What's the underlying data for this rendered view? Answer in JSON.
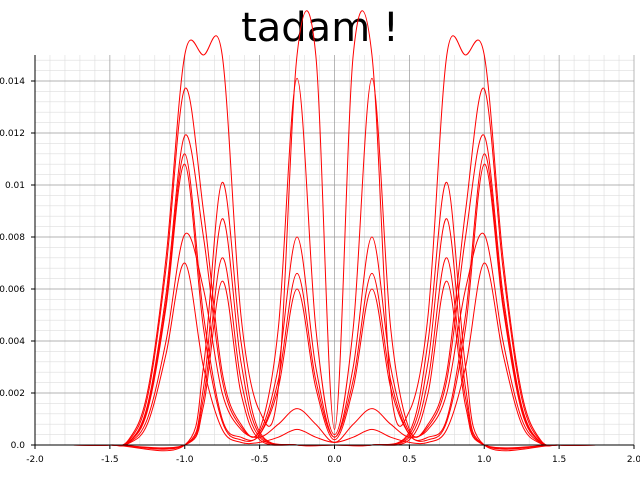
{
  "chart_data": {
    "type": "line",
    "title": "tadam !",
    "xlabel": "",
    "ylabel": "",
    "xlim": [
      -2.0,
      2.0
    ],
    "ylim": [
      0.0,
      0.015
    ],
    "x_ticks": [
      -2.0,
      -1.5,
      -1.0,
      -0.5,
      0.0,
      0.5,
      1.0,
      1.5,
      2.0
    ],
    "x_tick_labels": [
      "-2.0",
      "-1.5",
      "-1.0",
      "-0.5",
      "0.0",
      "0.5",
      "1.0",
      "1.5",
      "2.0"
    ],
    "y_ticks": [
      0.0,
      0.002,
      0.004,
      0.006,
      0.008,
      0.01,
      0.012,
      0.014
    ],
    "y_tick_labels": [
      "0.0",
      "0.002",
      "0.004",
      "0.006",
      "0.008",
      "0.01",
      "0.012",
      "0.014"
    ],
    "grid": true,
    "minor_grid": true,
    "line_color": "#ff0000",
    "series": [
      {
        "x": [
          -2.0,
          -1.75,
          -1.5,
          -1.375,
          -1.25,
          -1.125,
          -1.0,
          -0.875,
          -0.75,
          -0.625,
          -0.5,
          -0.375,
          -0.25,
          -0.125,
          0.0,
          0.125,
          0.25,
          0.375,
          0.5,
          0.625,
          0.75,
          0.875,
          1.0,
          1.125,
          1.25,
          1.375,
          1.5,
          1.75,
          2.0
        ],
        "y": [
          0,
          0,
          0,
          0.0002,
          0.002,
          0.0072,
          0.015,
          0.015,
          0.015,
          0.005,
          0.0013,
          0.0022,
          0.015,
          0.015,
          0.0006,
          0.015,
          0.015,
          0.0022,
          0.0013,
          0.005,
          0.015,
          0.015,
          0.015,
          0.0072,
          0.002,
          0.0002,
          0,
          0,
          0
        ]
      },
      {
        "x": [
          -2.0,
          -1.75,
          -1.5,
          -1.375,
          -1.25,
          -1.125,
          -1.0,
          -0.875,
          -0.75,
          -0.625,
          -0.5,
          -0.375,
          -0.25,
          -0.125,
          0.0,
          0.125,
          0.25,
          0.375,
          0.5,
          0.625,
          0.75,
          0.875,
          1.0,
          1.125,
          1.25,
          1.375,
          1.5,
          1.75,
          2.0
        ],
        "y": [
          0,
          0,
          0,
          0.00015,
          0.0018,
          0.0068,
          0.0137,
          0.009,
          0.0028,
          0.0008,
          0.0006,
          0.0045,
          0.0141,
          0.0045,
          0.0004,
          0.0045,
          0.0141,
          0.0045,
          0.0006,
          0.0008,
          0.0028,
          0.009,
          0.0137,
          0.0068,
          0.0018,
          0.00015,
          0,
          0,
          0
        ]
      },
      {
        "x": [
          -2.0,
          -1.75,
          -1.5,
          -1.375,
          -1.25,
          -1.125,
          -1.0,
          -0.875,
          -0.75,
          -0.625,
          -0.5,
          -0.375,
          -0.25,
          -0.125,
          0.0,
          0.125,
          0.25,
          0.375,
          0.5,
          0.625,
          0.75,
          0.875,
          1.0,
          1.125,
          1.25,
          1.375,
          1.5,
          1.75,
          2.0
        ],
        "y": [
          0,
          0,
          0,
          0.0001,
          0.0015,
          0.0058,
          0.0119,
          0.008,
          0.0025,
          0.0007,
          0.0005,
          0.003,
          0.008,
          0.003,
          0.0003,
          0.003,
          0.008,
          0.003,
          0.0005,
          0.0007,
          0.0025,
          0.008,
          0.0119,
          0.0058,
          0.0015,
          0.0001,
          0,
          0,
          0
        ]
      },
      {
        "x": [
          -2.0,
          -1.75,
          -1.5,
          -1.375,
          -1.25,
          -1.125,
          -1.0,
          -0.875,
          -0.75,
          -0.625,
          -0.5,
          -0.375,
          -0.25,
          -0.125,
          0.0,
          0.125,
          0.25,
          0.375,
          0.5,
          0.625,
          0.75,
          0.875,
          1.0,
          1.125,
          1.25,
          1.375,
          1.5,
          1.75,
          2.0
        ],
        "y": [
          0,
          0,
          0,
          0.0001,
          0.0014,
          0.0055,
          0.0112,
          0.005,
          0.001,
          0.0003,
          0.0004,
          0.0025,
          0.0066,
          0.0025,
          0.0003,
          0.0025,
          0.0066,
          0.0025,
          0.0004,
          0.0003,
          0.001,
          0.005,
          0.0112,
          0.0055,
          0.0014,
          0.0001,
          0,
          0,
          0
        ]
      },
      {
        "x": [
          -2.0,
          -1.75,
          -1.5,
          -1.375,
          -1.25,
          -1.125,
          -1.0,
          -0.875,
          -0.75,
          -0.625,
          -0.5,
          -0.375,
          -0.25,
          -0.125,
          0.0,
          0.125,
          0.25,
          0.375,
          0.5,
          0.625,
          0.75,
          0.875,
          1.0,
          1.125,
          1.25,
          1.375,
          1.5,
          1.75,
          2.0
        ],
        "y": [
          0,
          0,
          0,
          0.0001,
          0.0013,
          0.0053,
          0.0108,
          0.0045,
          0.0009,
          0.0002,
          0.0004,
          0.0022,
          0.006,
          0.0022,
          0.0002,
          0.0022,
          0.006,
          0.0022,
          0.0004,
          0.0002,
          0.0009,
          0.0045,
          0.0108,
          0.0053,
          0.0013,
          0.0001,
          0,
          0,
          0
        ]
      },
      {
        "x": [
          -2.0,
          -1.75,
          -1.5,
          -1.375,
          -1.25,
          -1.125,
          -1.0,
          -0.875,
          -0.75,
          -0.625,
          -0.5,
          -0.375,
          -0.25,
          -0.125,
          0.0,
          0.125,
          0.25,
          0.375,
          0.5,
          0.625,
          0.75,
          0.875,
          1.0,
          1.125,
          1.25,
          1.375,
          1.5,
          1.75,
          2.0
        ],
        "y": [
          0,
          0,
          0,
          8e-05,
          0.001,
          0.004,
          0.0081,
          0.006,
          0.002,
          0.0006,
          0.0003,
          0.0008,
          0.0014,
          0.0008,
          0.0001,
          0.0008,
          0.0014,
          0.0008,
          0.0003,
          0.0006,
          0.002,
          0.006,
          0.0081,
          0.004,
          0.001,
          8e-05,
          0,
          0,
          0
        ]
      },
      {
        "x": [
          -2.0,
          -1.75,
          -1.5,
          -1.375,
          -1.25,
          -1.125,
          -1.0,
          -0.875,
          -0.75,
          -0.625,
          -0.5,
          -0.375,
          -0.25,
          -0.125,
          0.0,
          0.125,
          0.25,
          0.375,
          0.5,
          0.625,
          0.75,
          0.875,
          1.0,
          1.125,
          1.25,
          1.375,
          1.5,
          1.75,
          2.0
        ],
        "y": [
          0,
          0,
          0,
          6e-05,
          0.0008,
          0.0035,
          0.007,
          0.003,
          0.0006,
          0.0001,
          0.0001,
          0.0003,
          0.0006,
          0.0003,
          0.0001,
          0.0003,
          0.0006,
          0.0003,
          0.0001,
          0.0001,
          0.0006,
          0.003,
          0.007,
          0.0035,
          0.0008,
          6e-05,
          0,
          0,
          0
        ]
      },
      {
        "x": [
          -2.0,
          -1.5,
          -1.0,
          -0.875,
          -0.75,
          -0.625,
          -0.5,
          -0.25,
          0.0,
          0.25,
          0.5,
          0.625,
          0.75,
          0.875,
          1.0,
          1.5,
          2.0
        ],
        "y": [
          0,
          0,
          0,
          0.003,
          0.0101,
          0.004,
          0.0005,
          0,
          0,
          0,
          0.0005,
          0.004,
          0.0101,
          0.003,
          0,
          0,
          0
        ]
      },
      {
        "x": [
          -2.0,
          -1.5,
          -1.0,
          -0.875,
          -0.75,
          -0.625,
          -0.5,
          -0.25,
          0.0,
          0.25,
          0.5,
          0.625,
          0.75,
          0.875,
          1.0,
          1.5,
          2.0
        ],
        "y": [
          0,
          0,
          0,
          0.0022,
          0.0087,
          0.0032,
          0.0004,
          0,
          0,
          0,
          0.0004,
          0.0032,
          0.0087,
          0.0022,
          0,
          0,
          0
        ]
      },
      {
        "x": [
          -2.0,
          -1.5,
          -1.0,
          -0.875,
          -0.75,
          -0.625,
          -0.5,
          -0.25,
          0.0,
          0.25,
          0.5,
          0.625,
          0.75,
          0.875,
          1.0,
          1.5,
          2.0
        ],
        "y": [
          0,
          0,
          0,
          0.0018,
          0.0072,
          0.0025,
          0.0003,
          0,
          0,
          0,
          0.0003,
          0.0025,
          0.0072,
          0.0018,
          0,
          0,
          0
        ]
      },
      {
        "x": [
          -2.0,
          -1.5,
          -1.0,
          -0.875,
          -0.75,
          -0.625,
          -0.5,
          -0.25,
          0.0,
          0.25,
          0.5,
          0.625,
          0.75,
          0.875,
          1.0,
          1.5,
          2.0
        ],
        "y": [
          0,
          0,
          0,
          0.0015,
          0.0063,
          0.002,
          0.0002,
          0,
          0,
          0,
          0.0002,
          0.002,
          0.0063,
          0.0015,
          0,
          0,
          0
        ]
      }
    ]
  }
}
